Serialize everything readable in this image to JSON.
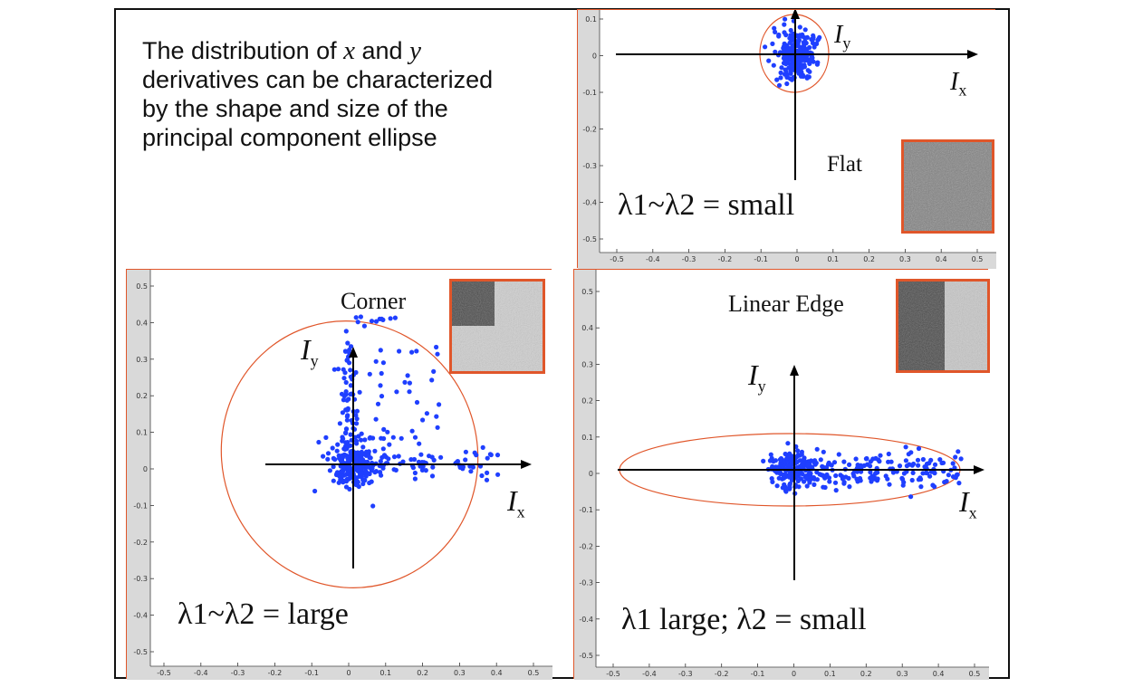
{
  "intro": {
    "line1_pre": "The distribution of ",
    "var_x": "x",
    "line1_mid": " and ",
    "var_y": "y",
    "line2": "derivatives can be characterized",
    "line3": "by the shape and size of the",
    "line4": "principal component ellipse"
  },
  "panels": {
    "flat": {
      "title": "Flat",
      "lambda_text": "λ1~λ2 = small",
      "ylabel_main": "I",
      "ylabel_sub": "y",
      "xlabel_main": "I",
      "xlabel_sub": "x",
      "y_ticks": [
        "0.1",
        "0",
        "-0.1",
        "-0.2",
        "-0.3",
        "-0.4",
        "-0.5"
      ],
      "x_ticks": [
        "-0.5",
        "-0.4",
        "-0.3",
        "-0.2",
        "-0.1",
        "0",
        "0.1",
        "0.2",
        "0.3",
        "0.4",
        "0.5"
      ]
    },
    "corner": {
      "title": "Corner",
      "lambda_text": "λ1~λ2 = large",
      "ylabel_main": "I",
      "ylabel_sub": "y",
      "xlabel_main": "I",
      "xlabel_sub": "x",
      "y_ticks": [
        "0.5",
        "0.4",
        "0.3",
        "0.2",
        "0.1",
        "0",
        "-0.1",
        "-0.2",
        "-0.3",
        "-0.4",
        "-0.5"
      ],
      "x_ticks": [
        "-0.5",
        "-0.4",
        "-0.3",
        "-0.2",
        "-0.1",
        "0",
        "0.1",
        "0.2",
        "0.3",
        "0.4",
        "0.5"
      ]
    },
    "edge": {
      "title": "Linear Edge",
      "lambda_text": "λ1 large; λ2 = small",
      "ylabel_main": "I",
      "ylabel_sub": "y",
      "xlabel_main": "I",
      "xlabel_sub": "x",
      "y_ticks": [
        "0.5",
        "0.4",
        "0.3",
        "0.2",
        "0.1",
        "0",
        "-0.1",
        "-0.2",
        "-0.3",
        "-0.4",
        "-0.5"
      ],
      "x_ticks": [
        "-0.5",
        "-0.4",
        "-0.3",
        "-0.2",
        "-0.1",
        "0",
        "0.1",
        "0.2",
        "0.3",
        "0.4",
        "0.5"
      ]
    }
  },
  "colors": {
    "points": "#1f3fff",
    "ellipse": "#e0562a",
    "frame": "#e0562a"
  }
}
